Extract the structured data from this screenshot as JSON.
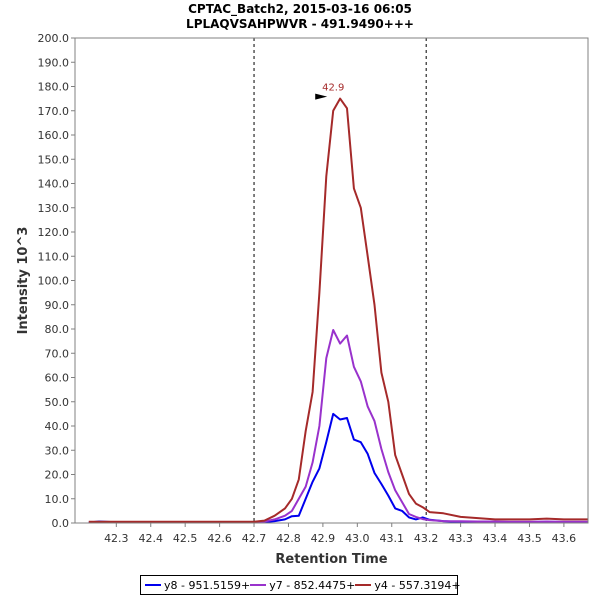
{
  "chart_data": {
    "type": "line",
    "title": "CPTAC_Batch2, 2015-03-16 06:05",
    "subtitle": "LPLAQVSAHPWVR - 491.9490+++",
    "xlabel": "Retention Time",
    "ylabel": "Intensity 10^3",
    "xlim": [
      42.18,
      43.67
    ],
    "ylim": [
      0,
      200
    ],
    "xticks": [
      42.3,
      42.4,
      42.5,
      42.6,
      42.7,
      42.8,
      42.9,
      43.0,
      43.1,
      43.2,
      43.3,
      43.4,
      43.5,
      43.6
    ],
    "yticks": [
      0,
      10,
      20,
      30,
      40,
      50,
      60,
      70,
      80,
      90,
      100,
      110,
      120,
      130,
      140,
      150,
      160,
      170,
      180,
      190,
      200
    ],
    "boundaries": [
      42.7,
      43.2
    ],
    "peak_label": {
      "x": 42.93,
      "y": 175,
      "text": "42.9"
    },
    "legend_position": "bottom",
    "x": [
      42.22,
      42.25,
      42.3,
      42.35,
      42.4,
      42.45,
      42.5,
      42.55,
      42.6,
      42.65,
      42.7,
      42.73,
      42.76,
      42.79,
      42.81,
      42.83,
      42.85,
      42.87,
      42.89,
      42.91,
      42.93,
      42.95,
      42.97,
      42.99,
      43.01,
      43.03,
      43.05,
      43.07,
      43.09,
      43.11,
      43.13,
      43.15,
      43.17,
      43.19,
      43.21,
      43.25,
      43.3,
      43.35,
      43.4,
      43.45,
      43.5,
      43.55,
      43.6,
      43.67
    ],
    "series": [
      {
        "name": "y8 - 951.5159+",
        "color": "#0000ee",
        "values": [
          0.2,
          0.6,
          0.3,
          0.3,
          0.3,
          0.3,
          0.3,
          0.3,
          0.3,
          0.3,
          0.3,
          0.4,
          0.8,
          1.5,
          2.8,
          3,
          10,
          17,
          22.5,
          33.4,
          45,
          42.7,
          43.3,
          34.4,
          33.3,
          28.5,
          20.6,
          16.1,
          11.3,
          6,
          5,
          2.3,
          1.5,
          2.3,
          1.3,
          0.8,
          0.4,
          0.3,
          0.3,
          0.2,
          0.2,
          0.3,
          0.2,
          0.2
        ]
      },
      {
        "name": "y7 - 852.4475+",
        "color": "#9932cc",
        "values": [
          0.2,
          0.4,
          0.3,
          0.3,
          0.3,
          0.3,
          0.3,
          0.3,
          0.3,
          0.3,
          0.3,
          0.6,
          1.5,
          3,
          5,
          10,
          15,
          25,
          40,
          68,
          79.6,
          74,
          77.3,
          64.4,
          58.4,
          48,
          42,
          30.5,
          21,
          13.5,
          8.6,
          3.7,
          2.5,
          1.6,
          1.2,
          0.8,
          0.7,
          0.6,
          0.6,
          0.5,
          0.5,
          0.6,
          0.5,
          0.5
        ]
      },
      {
        "name": "y4 - 557.3194+",
        "color": "#a52a2a",
        "values": [
          0.5,
          0.5,
          0.5,
          0.5,
          0.5,
          0.5,
          0.5,
          0.5,
          0.5,
          0.5,
          0.5,
          1,
          3,
          6,
          10,
          18,
          38,
          54,
          95,
          143,
          170,
          175,
          171,
          138,
          130,
          110,
          90,
          62,
          50,
          28,
          20,
          12,
          8,
          6.5,
          4.5,
          4,
          2.5,
          2,
          1.5,
          1.5,
          1.5,
          1.8,
          1.5,
          1.5
        ]
      }
    ]
  }
}
